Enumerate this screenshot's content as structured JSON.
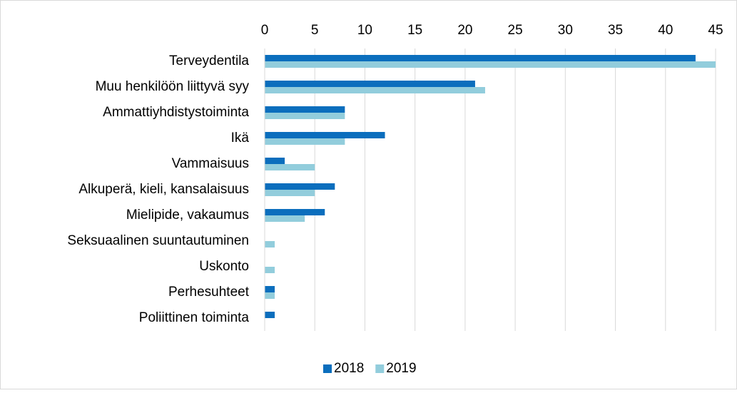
{
  "chart_data": {
    "type": "hbar",
    "categories": [
      "Terveydentila",
      "Muu henkilöön liittyvä syy",
      "Ammattiyhdistystoiminta",
      "Ikä",
      "Vammaisuus",
      "Alkuperä, kieli, kansalaisuus",
      "Mielipide, vakaumus",
      "Seksuaalinen suuntautuminen",
      "Uskonto",
      "Perhesuhteet",
      "Poliittinen toiminta"
    ],
    "series": [
      {
        "name": "2018",
        "color": "#0b6ebd",
        "values": [
          43,
          21,
          8,
          12,
          2,
          7,
          6,
          0,
          0,
          1,
          1
        ]
      },
      {
        "name": "2019",
        "color": "#92cddc",
        "values": [
          45,
          22,
          8,
          8,
          5,
          5,
          4,
          1,
          1,
          1,
          0
        ]
      }
    ],
    "xlim": [
      0,
      45
    ],
    "xticks": [
      0,
      5,
      10,
      15,
      20,
      25,
      30,
      35,
      40,
      45
    ],
    "grid": true,
    "legend": "bottom"
  }
}
